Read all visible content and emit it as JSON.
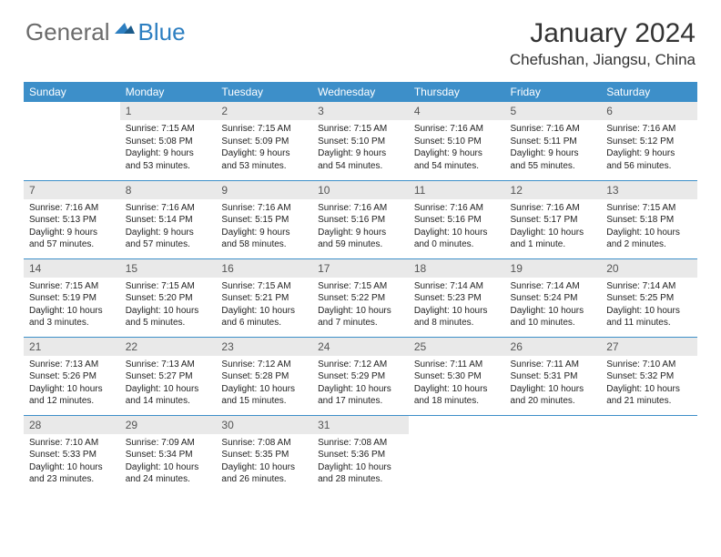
{
  "logo": {
    "part1": "General",
    "part2": "Blue"
  },
  "title": "January 2024",
  "location": "Chefushan, Jiangsu, China",
  "headers": [
    "Sunday",
    "Monday",
    "Tuesday",
    "Wednesday",
    "Thursday",
    "Friday",
    "Saturday"
  ],
  "colors": {
    "header_bg": "#3d8fc9",
    "header_text": "#ffffff",
    "daynum_bg": "#e9e9e9",
    "row_border": "#3d8fc9",
    "logo_gray": "#6b6b6b",
    "logo_blue": "#2d7fc1"
  },
  "rows": [
    [
      {
        "n": "",
        "sr": "",
        "ss": "",
        "dl": ""
      },
      {
        "n": "1",
        "sr": "7:15 AM",
        "ss": "5:08 PM",
        "dl": "9 hours and 53 minutes."
      },
      {
        "n": "2",
        "sr": "7:15 AM",
        "ss": "5:09 PM",
        "dl": "9 hours and 53 minutes."
      },
      {
        "n": "3",
        "sr": "7:15 AM",
        "ss": "5:10 PM",
        "dl": "9 hours and 54 minutes."
      },
      {
        "n": "4",
        "sr": "7:16 AM",
        "ss": "5:10 PM",
        "dl": "9 hours and 54 minutes."
      },
      {
        "n": "5",
        "sr": "7:16 AM",
        "ss": "5:11 PM",
        "dl": "9 hours and 55 minutes."
      },
      {
        "n": "6",
        "sr": "7:16 AM",
        "ss": "5:12 PM",
        "dl": "9 hours and 56 minutes."
      }
    ],
    [
      {
        "n": "7",
        "sr": "7:16 AM",
        "ss": "5:13 PM",
        "dl": "9 hours and 57 minutes."
      },
      {
        "n": "8",
        "sr": "7:16 AM",
        "ss": "5:14 PM",
        "dl": "9 hours and 57 minutes."
      },
      {
        "n": "9",
        "sr": "7:16 AM",
        "ss": "5:15 PM",
        "dl": "9 hours and 58 minutes."
      },
      {
        "n": "10",
        "sr": "7:16 AM",
        "ss": "5:16 PM",
        "dl": "9 hours and 59 minutes."
      },
      {
        "n": "11",
        "sr": "7:16 AM",
        "ss": "5:16 PM",
        "dl": "10 hours and 0 minutes."
      },
      {
        "n": "12",
        "sr": "7:16 AM",
        "ss": "5:17 PM",
        "dl": "10 hours and 1 minute."
      },
      {
        "n": "13",
        "sr": "7:15 AM",
        "ss": "5:18 PM",
        "dl": "10 hours and 2 minutes."
      }
    ],
    [
      {
        "n": "14",
        "sr": "7:15 AM",
        "ss": "5:19 PM",
        "dl": "10 hours and 3 minutes."
      },
      {
        "n": "15",
        "sr": "7:15 AM",
        "ss": "5:20 PM",
        "dl": "10 hours and 5 minutes."
      },
      {
        "n": "16",
        "sr": "7:15 AM",
        "ss": "5:21 PM",
        "dl": "10 hours and 6 minutes."
      },
      {
        "n": "17",
        "sr": "7:15 AM",
        "ss": "5:22 PM",
        "dl": "10 hours and 7 minutes."
      },
      {
        "n": "18",
        "sr": "7:14 AM",
        "ss": "5:23 PM",
        "dl": "10 hours and 8 minutes."
      },
      {
        "n": "19",
        "sr": "7:14 AM",
        "ss": "5:24 PM",
        "dl": "10 hours and 10 minutes."
      },
      {
        "n": "20",
        "sr": "7:14 AM",
        "ss": "5:25 PM",
        "dl": "10 hours and 11 minutes."
      }
    ],
    [
      {
        "n": "21",
        "sr": "7:13 AM",
        "ss": "5:26 PM",
        "dl": "10 hours and 12 minutes."
      },
      {
        "n": "22",
        "sr": "7:13 AM",
        "ss": "5:27 PM",
        "dl": "10 hours and 14 minutes."
      },
      {
        "n": "23",
        "sr": "7:12 AM",
        "ss": "5:28 PM",
        "dl": "10 hours and 15 minutes."
      },
      {
        "n": "24",
        "sr": "7:12 AM",
        "ss": "5:29 PM",
        "dl": "10 hours and 17 minutes."
      },
      {
        "n": "25",
        "sr": "7:11 AM",
        "ss": "5:30 PM",
        "dl": "10 hours and 18 minutes."
      },
      {
        "n": "26",
        "sr": "7:11 AM",
        "ss": "5:31 PM",
        "dl": "10 hours and 20 minutes."
      },
      {
        "n": "27",
        "sr": "7:10 AM",
        "ss": "5:32 PM",
        "dl": "10 hours and 21 minutes."
      }
    ],
    [
      {
        "n": "28",
        "sr": "7:10 AM",
        "ss": "5:33 PM",
        "dl": "10 hours and 23 minutes."
      },
      {
        "n": "29",
        "sr": "7:09 AM",
        "ss": "5:34 PM",
        "dl": "10 hours and 24 minutes."
      },
      {
        "n": "30",
        "sr": "7:08 AM",
        "ss": "5:35 PM",
        "dl": "10 hours and 26 minutes."
      },
      {
        "n": "31",
        "sr": "7:08 AM",
        "ss": "5:36 PM",
        "dl": "10 hours and 28 minutes."
      },
      {
        "n": "",
        "sr": "",
        "ss": "",
        "dl": ""
      },
      {
        "n": "",
        "sr": "",
        "ss": "",
        "dl": ""
      },
      {
        "n": "",
        "sr": "",
        "ss": "",
        "dl": ""
      }
    ]
  ],
  "labels": {
    "sunrise": "Sunrise:",
    "sunset": "Sunset:",
    "daylight": "Daylight:"
  }
}
